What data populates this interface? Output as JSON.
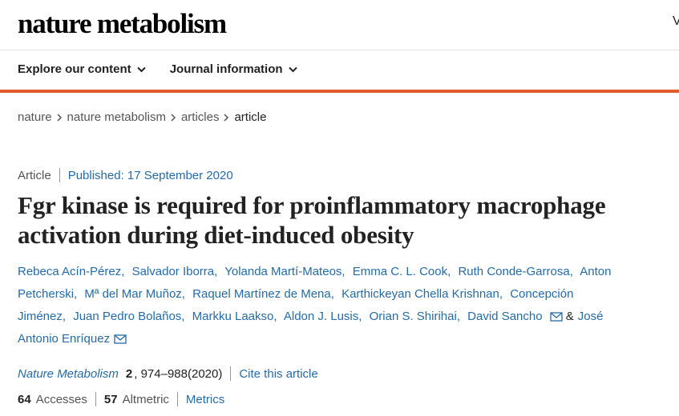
{
  "header": {
    "logo": "nature metabolism",
    "corner": "V"
  },
  "nav": [
    "Explore our content",
    "Journal information"
  ],
  "breadcrumbs": [
    "nature",
    "nature metabolism",
    "articles",
    "article"
  ],
  "article": {
    "type": "Article",
    "published": "Published: 17 September 2020",
    "title": "Fgr kinase is required for proinflammatory macrophage activation during diet-induced obesity",
    "authors": [
      "Rebeca Acín-Pérez,",
      "Salvador Iborra,",
      "Yolanda Martí-Mateos,",
      "Emma C. L. Cook,",
      "Ruth Conde-Garrosa,",
      "Anton Petcherski,",
      "Mª del Mar Muñoz,",
      "Raquel Martínez de Mena,",
      "Karthickeyan Chella Krishnan,",
      "Concepción Jiménez,",
      "Juan Pedro Bolaños,",
      "Markku Laakso,",
      "Aldon J. Lusis,",
      "Orian S. Shirihai,",
      "David Sancho"
    ],
    "last_author": "José Antonio Enríquez",
    "and": "&",
    "journal": "Nature Metabolism",
    "volume": "2",
    "pages": "974–988",
    "year": "(2020)",
    "cite": "Cite this article",
    "accesses": {
      "value": "64",
      "label": "Accesses"
    },
    "altmetric": {
      "value": "57",
      "label": "Altmetric"
    },
    "metrics": "Metrics"
  }
}
